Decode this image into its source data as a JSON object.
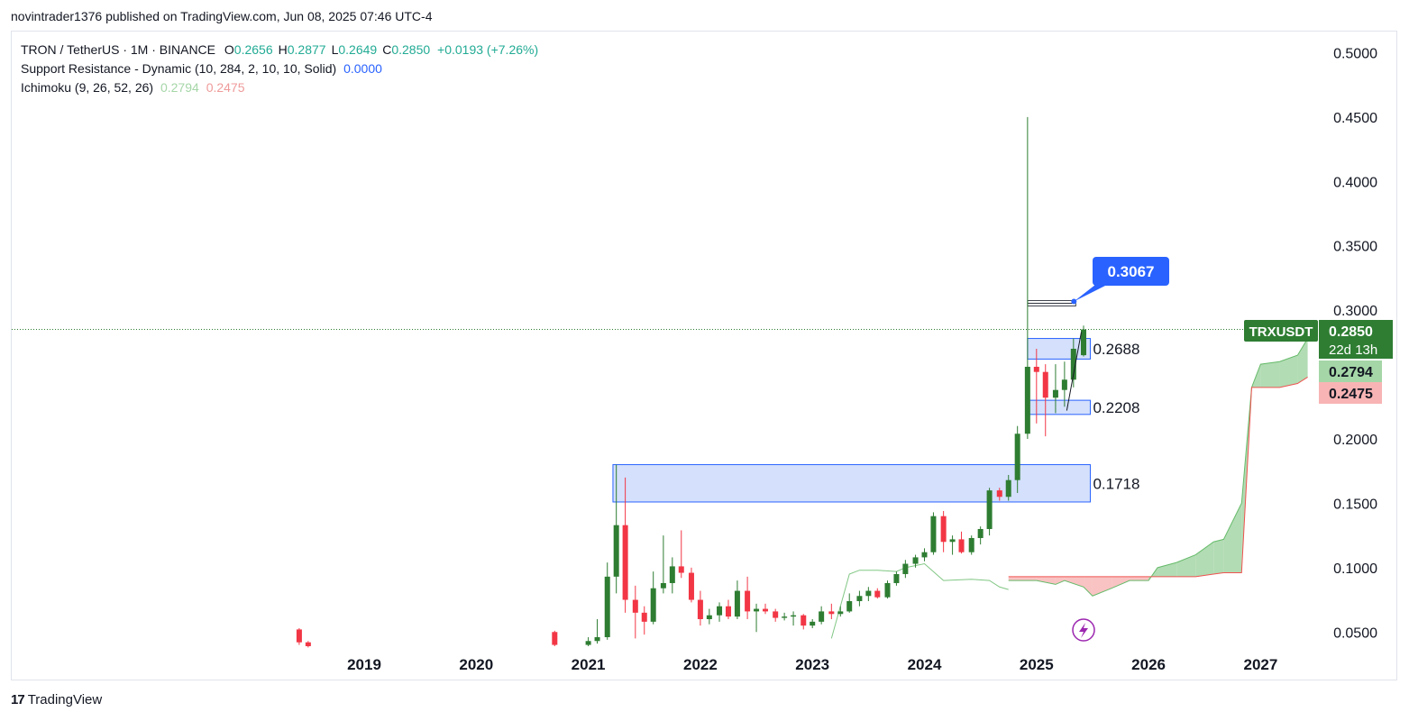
{
  "header": {
    "caption": "novintrader1376 published on TradingView.com, Jun 08, 2025 07:46 UTC-4"
  },
  "legend": {
    "symbol": "TRON / TetherUS · 1M · BINANCE",
    "ohlc": [
      {
        "k": "O",
        "v": "0.2656"
      },
      {
        "k": "H",
        "v": "0.2877"
      },
      {
        "k": "L",
        "v": "0.2649"
      },
      {
        "k": "C",
        "v": "0.2850"
      }
    ],
    "change": "+0.0193 (+7.26%)",
    "sr_name": "Support Resistance - Dynamic (10, 284, 2, 10, 10, Solid)",
    "sr_value": "0.0000",
    "ichimoku_name": "Ichimoku (9, 26, 52, 26)",
    "ichimoku_a": "0.2794",
    "ichimoku_b": "0.2475"
  },
  "footer": {
    "brand": "TradingView"
  },
  "colors": {
    "up": "#2e7d32",
    "down": "#f23645",
    "zone": "#2962ff",
    "cloud_up": "#a5d6a7",
    "cloud_down": "#f8b4b4",
    "callout": "#2962ff"
  },
  "chart_data": {
    "type": "candlestick",
    "y_ticks": [
      "0.5000",
      "0.4500",
      "0.4000",
      "0.3500",
      "0.3000",
      "0.2000",
      "0.1500",
      "0.1000",
      "0.0500"
    ],
    "ylim": [
      0.0,
      0.5
    ],
    "x_ticks": [
      "2019",
      "2020",
      "2021",
      "2022",
      "2023",
      "2024",
      "2025",
      "2026",
      "2027"
    ],
    "last_price": 0.285,
    "price_badge": {
      "symbol": "TRXUSDT",
      "price": "0.2850",
      "countdown": "22d 13h"
    },
    "ichimoku_badges": [
      {
        "value": "0.2794",
        "color": "#a5d6a7"
      },
      {
        "value": "0.2475",
        "color": "#f8b4b4"
      }
    ],
    "callout": {
      "label": "0.3067",
      "price": 0.3067
    },
    "zones": [
      {
        "label": "0.1718",
        "top": 0.18,
        "bottom": 0.151,
        "from": 2021.22,
        "to": 2025.48
      },
      {
        "label": "0.2208",
        "top": 0.23,
        "bottom": 0.219,
        "from": 2024.92,
        "to": 2025.48
      },
      {
        "label": "0.2688",
        "top": 0.278,
        "bottom": 0.262,
        "from": 2024.92,
        "to": 2025.48
      }
    ],
    "resistance_lines": [
      {
        "price": 0.3067,
        "from": 2024.92,
        "to": 2025.35
      }
    ],
    "candles": [
      {
        "t": 2018.42,
        "o": 0.052,
        "h": 0.053,
        "l": 0.04,
        "c": 0.042
      },
      {
        "t": 2018.5,
        "o": 0.042,
        "h": 0.043,
        "l": 0.038,
        "c": 0.039
      },
      {
        "t": 2020.7,
        "o": 0.05,
        "h": 0.051,
        "l": 0.039,
        "c": 0.04
      },
      {
        "t": 2021.0,
        "o": 0.04,
        "h": 0.046,
        "l": 0.039,
        "c": 0.043
      },
      {
        "t": 2021.08,
        "o": 0.043,
        "h": 0.06,
        "l": 0.041,
        "c": 0.046
      },
      {
        "t": 2021.17,
        "o": 0.046,
        "h": 0.104,
        "l": 0.044,
        "c": 0.093
      },
      {
        "t": 2021.25,
        "o": 0.093,
        "h": 0.18,
        "l": 0.08,
        "c": 0.133
      },
      {
        "t": 2021.33,
        "o": 0.133,
        "h": 0.17,
        "l": 0.065,
        "c": 0.075
      },
      {
        "t": 2021.42,
        "o": 0.075,
        "h": 0.086,
        "l": 0.045,
        "c": 0.065
      },
      {
        "t": 2021.5,
        "o": 0.065,
        "h": 0.07,
        "l": 0.048,
        "c": 0.058
      },
      {
        "t": 2021.58,
        "o": 0.058,
        "h": 0.097,
        "l": 0.056,
        "c": 0.084
      },
      {
        "t": 2021.67,
        "o": 0.084,
        "h": 0.125,
        "l": 0.08,
        "c": 0.088
      },
      {
        "t": 2021.75,
        "o": 0.088,
        "h": 0.108,
        "l": 0.08,
        "c": 0.101
      },
      {
        "t": 2021.83,
        "o": 0.101,
        "h": 0.129,
        "l": 0.092,
        "c": 0.096
      },
      {
        "t": 2021.92,
        "o": 0.096,
        "h": 0.1,
        "l": 0.073,
        "c": 0.075
      },
      {
        "t": 2022.0,
        "o": 0.075,
        "h": 0.082,
        "l": 0.055,
        "c": 0.06
      },
      {
        "t": 2022.08,
        "o": 0.06,
        "h": 0.068,
        "l": 0.056,
        "c": 0.063
      },
      {
        "t": 2022.17,
        "o": 0.063,
        "h": 0.073,
        "l": 0.058,
        "c": 0.07
      },
      {
        "t": 2022.25,
        "o": 0.07,
        "h": 0.075,
        "l": 0.06,
        "c": 0.062
      },
      {
        "t": 2022.33,
        "o": 0.062,
        "h": 0.09,
        "l": 0.06,
        "c": 0.082
      },
      {
        "t": 2022.42,
        "o": 0.082,
        "h": 0.093,
        "l": 0.06,
        "c": 0.066
      },
      {
        "t": 2022.5,
        "o": 0.066,
        "h": 0.072,
        "l": 0.05,
        "c": 0.068
      },
      {
        "t": 2022.58,
        "o": 0.068,
        "h": 0.072,
        "l": 0.064,
        "c": 0.066
      },
      {
        "t": 2022.67,
        "o": 0.066,
        "h": 0.068,
        "l": 0.058,
        "c": 0.061
      },
      {
        "t": 2022.75,
        "o": 0.061,
        "h": 0.065,
        "l": 0.059,
        "c": 0.062
      },
      {
        "t": 2022.83,
        "o": 0.062,
        "h": 0.066,
        "l": 0.055,
        "c": 0.063
      },
      {
        "t": 2022.92,
        "o": 0.063,
        "h": 0.064,
        "l": 0.052,
        "c": 0.055
      },
      {
        "t": 2023.0,
        "o": 0.055,
        "h": 0.06,
        "l": 0.053,
        "c": 0.058
      },
      {
        "t": 2023.08,
        "o": 0.058,
        "h": 0.07,
        "l": 0.056,
        "c": 0.066
      },
      {
        "t": 2023.17,
        "o": 0.066,
        "h": 0.072,
        "l": 0.06,
        "c": 0.064
      },
      {
        "t": 2023.25,
        "o": 0.064,
        "h": 0.07,
        "l": 0.062,
        "c": 0.066
      },
      {
        "t": 2023.33,
        "o": 0.066,
        "h": 0.08,
        "l": 0.065,
        "c": 0.074
      },
      {
        "t": 2023.42,
        "o": 0.074,
        "h": 0.082,
        "l": 0.07,
        "c": 0.078
      },
      {
        "t": 2023.5,
        "o": 0.078,
        "h": 0.085,
        "l": 0.074,
        "c": 0.082
      },
      {
        "t": 2023.58,
        "o": 0.082,
        "h": 0.084,
        "l": 0.076,
        "c": 0.077
      },
      {
        "t": 2023.67,
        "o": 0.077,
        "h": 0.09,
        "l": 0.076,
        "c": 0.088
      },
      {
        "t": 2023.75,
        "o": 0.088,
        "h": 0.097,
        "l": 0.086,
        "c": 0.095
      },
      {
        "t": 2023.83,
        "o": 0.095,
        "h": 0.106,
        "l": 0.092,
        "c": 0.103
      },
      {
        "t": 2023.92,
        "o": 0.103,
        "h": 0.11,
        "l": 0.1,
        "c": 0.108
      },
      {
        "t": 2024.0,
        "o": 0.108,
        "h": 0.115,
        "l": 0.105,
        "c": 0.112
      },
      {
        "t": 2024.08,
        "o": 0.112,
        "h": 0.143,
        "l": 0.11,
        "c": 0.14
      },
      {
        "t": 2024.17,
        "o": 0.14,
        "h": 0.144,
        "l": 0.112,
        "c": 0.12
      },
      {
        "t": 2024.25,
        "o": 0.12,
        "h": 0.125,
        "l": 0.11,
        "c": 0.122
      },
      {
        "t": 2024.33,
        "o": 0.122,
        "h": 0.128,
        "l": 0.111,
        "c": 0.112
      },
      {
        "t": 2024.42,
        "o": 0.112,
        "h": 0.125,
        "l": 0.11,
        "c": 0.123
      },
      {
        "t": 2024.5,
        "o": 0.123,
        "h": 0.132,
        "l": 0.118,
        "c": 0.13
      },
      {
        "t": 2024.58,
        "o": 0.13,
        "h": 0.162,
        "l": 0.125,
        "c": 0.16
      },
      {
        "t": 2024.67,
        "o": 0.16,
        "h": 0.162,
        "l": 0.152,
        "c": 0.155
      },
      {
        "t": 2024.75,
        "o": 0.155,
        "h": 0.172,
        "l": 0.152,
        "c": 0.168
      },
      {
        "t": 2024.83,
        "o": 0.168,
        "h": 0.21,
        "l": 0.158,
        "c": 0.204
      },
      {
        "t": 2024.92,
        "o": 0.204,
        "h": 0.45,
        "l": 0.2,
        "c": 0.256
      },
      {
        "t": 2025.0,
        "o": 0.256,
        "h": 0.27,
        "l": 0.212,
        "c": 0.252
      },
      {
        "t": 2025.08,
        "o": 0.252,
        "h": 0.258,
        "l": 0.202,
        "c": 0.232
      },
      {
        "t": 2025.17,
        "o": 0.232,
        "h": 0.258,
        "l": 0.22,
        "c": 0.238
      },
      {
        "t": 2025.25,
        "o": 0.238,
        "h": 0.26,
        "l": 0.225,
        "c": 0.246
      },
      {
        "t": 2025.33,
        "o": 0.246,
        "h": 0.278,
        "l": 0.24,
        "c": 0.27
      },
      {
        "t": 2025.42,
        "o": 0.265,
        "h": 0.288,
        "l": 0.264,
        "c": 0.285
      }
    ],
    "ichimoku_lagging": [
      [
        2023.17,
        0.045
      ],
      [
        2023.25,
        0.07
      ],
      [
        2023.33,
        0.095
      ],
      [
        2023.42,
        0.098
      ],
      [
        2023.58,
        0.098
      ],
      [
        2023.75,
        0.097
      ],
      [
        2023.83,
        0.1
      ],
      [
        2024.0,
        0.103
      ],
      [
        2024.17,
        0.09
      ],
      [
        2024.42,
        0.091
      ],
      [
        2024.58,
        0.09
      ],
      [
        2024.67,
        0.085
      ],
      [
        2024.75,
        0.083
      ]
    ],
    "ichimoku_cloud": {
      "x": [
        2024.75,
        2025.0,
        2025.17,
        2025.25,
        2025.42,
        2025.5,
        2025.67,
        2025.83,
        2026.0,
        2026.08,
        2026.25,
        2026.42,
        2026.58,
        2026.67,
        2026.83,
        2026.92,
        2027.0,
        2027.17,
        2027.33,
        2027.42
      ],
      "span_a": [
        0.09,
        0.09,
        0.087,
        0.09,
        0.085,
        0.078,
        0.084,
        0.09,
        0.09,
        0.1,
        0.104,
        0.11,
        0.12,
        0.122,
        0.15,
        0.24,
        0.258,
        0.26,
        0.265,
        0.278
      ],
      "span_b": [
        0.093,
        0.093,
        0.093,
        0.093,
        0.093,
        0.093,
        0.093,
        0.093,
        0.093,
        0.093,
        0.093,
        0.093,
        0.095,
        0.096,
        0.096,
        0.24,
        0.24,
        0.24,
        0.243,
        0.248
      ]
    }
  }
}
